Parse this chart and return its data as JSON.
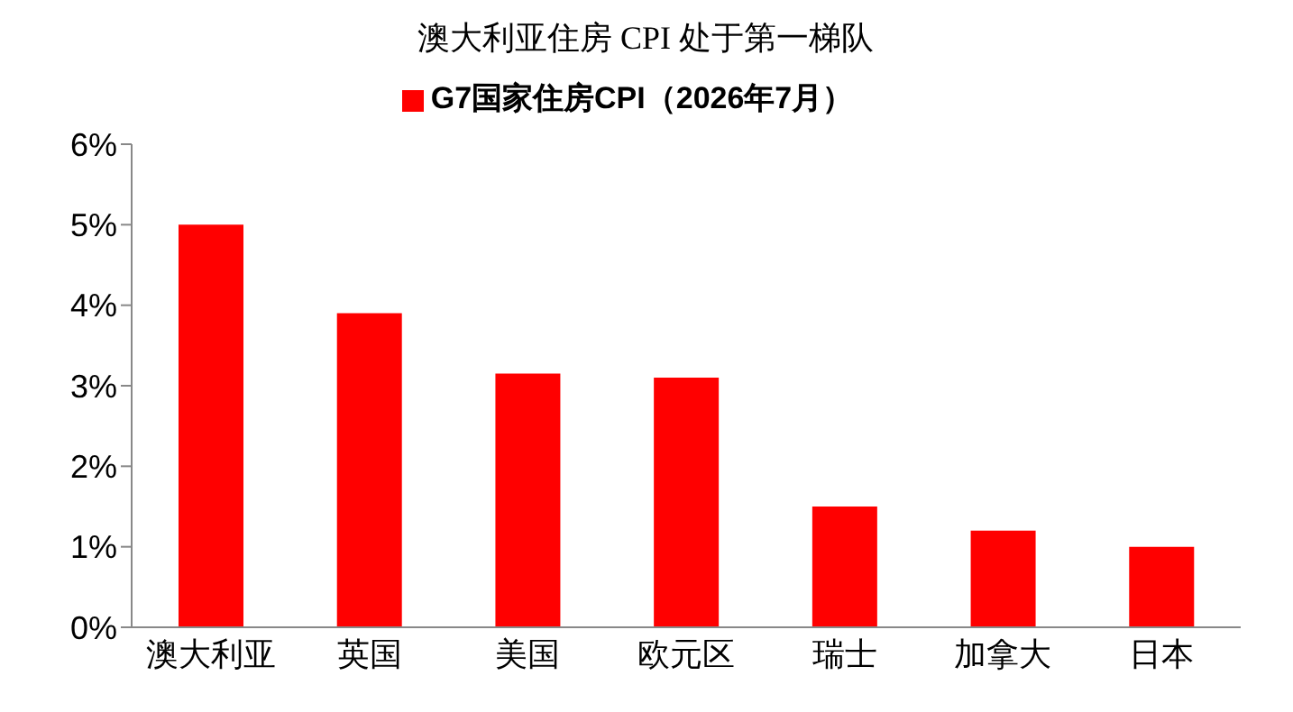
{
  "chart_data": {
    "type": "bar",
    "title": "澳大利亚住房 CPI 处于第一梯队",
    "categories": [
      "澳大利亚",
      "英国",
      "美国",
      "欧元区",
      "瑞士",
      "加拿大",
      "日本"
    ],
    "series": [
      {
        "name": "G7国家住房CPI（2026年7月）",
        "color": "#ff0000",
        "values": [
          5.0,
          3.9,
          3.15,
          3.1,
          1.5,
          1.2,
          1.0
        ]
      }
    ],
    "ylim": [
      0,
      6
    ],
    "yticks": [
      {
        "value": 0,
        "label": "0%"
      },
      {
        "value": 1,
        "label": "1%"
      },
      {
        "value": 2,
        "label": "2%"
      },
      {
        "value": 3,
        "label": "3%"
      },
      {
        "value": 4,
        "label": "4%"
      },
      {
        "value": 5,
        "label": "5%"
      },
      {
        "value": 6,
        "label": "6%"
      }
    ],
    "grid": false,
    "legend": "top"
  }
}
